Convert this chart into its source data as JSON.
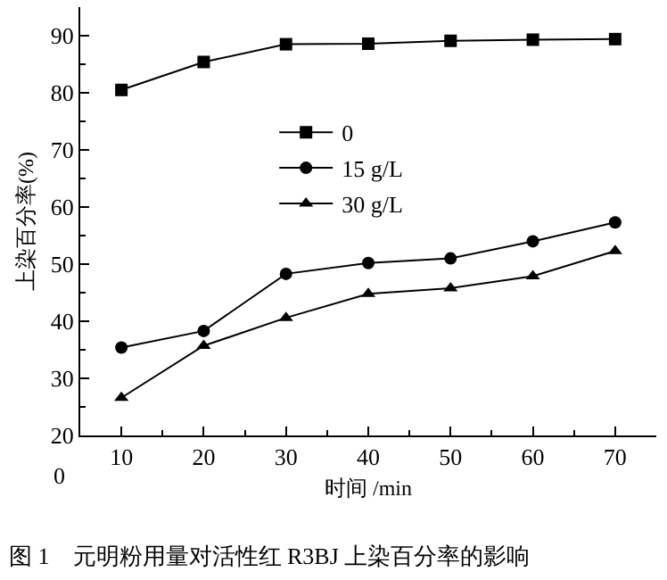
{
  "chart_data": {
    "type": "line",
    "xlabel": "时间 /min",
    "ylabel": "上染百分率(%)",
    "annotations": [
      "0",
      "图 1　元明粉用量对活性红 R3BJ 上染百分率的影响"
    ],
    "x": [
      10,
      20,
      30,
      40,
      50,
      60,
      70
    ],
    "xlim": [
      5,
      75
    ],
    "xticks": [
      10,
      20,
      30,
      40,
      50,
      60,
      70
    ],
    "ylim": [
      20,
      95
    ],
    "yticks": [
      20,
      30,
      40,
      50,
      60,
      70,
      80,
      90
    ],
    "grid": false,
    "legend": "center",
    "line_style": "solid",
    "series": [
      {
        "name": "0",
        "color": "#000000",
        "marker": "square",
        "values": [
          80.5,
          85.4,
          88.5,
          88.6,
          89.1,
          89.3,
          89.4
        ]
      },
      {
        "name": "15 g/L",
        "color": "#000000",
        "marker": "circle",
        "values": [
          35.4,
          38.3,
          48.3,
          50.2,
          51.0,
          54.0,
          57.3
        ]
      },
      {
        "name": "30 g/L",
        "color": "#000000",
        "marker": "triangle",
        "values": [
          26.6,
          35.7,
          40.6,
          44.8,
          45.8,
          47.9,
          52.3
        ]
      }
    ]
  }
}
